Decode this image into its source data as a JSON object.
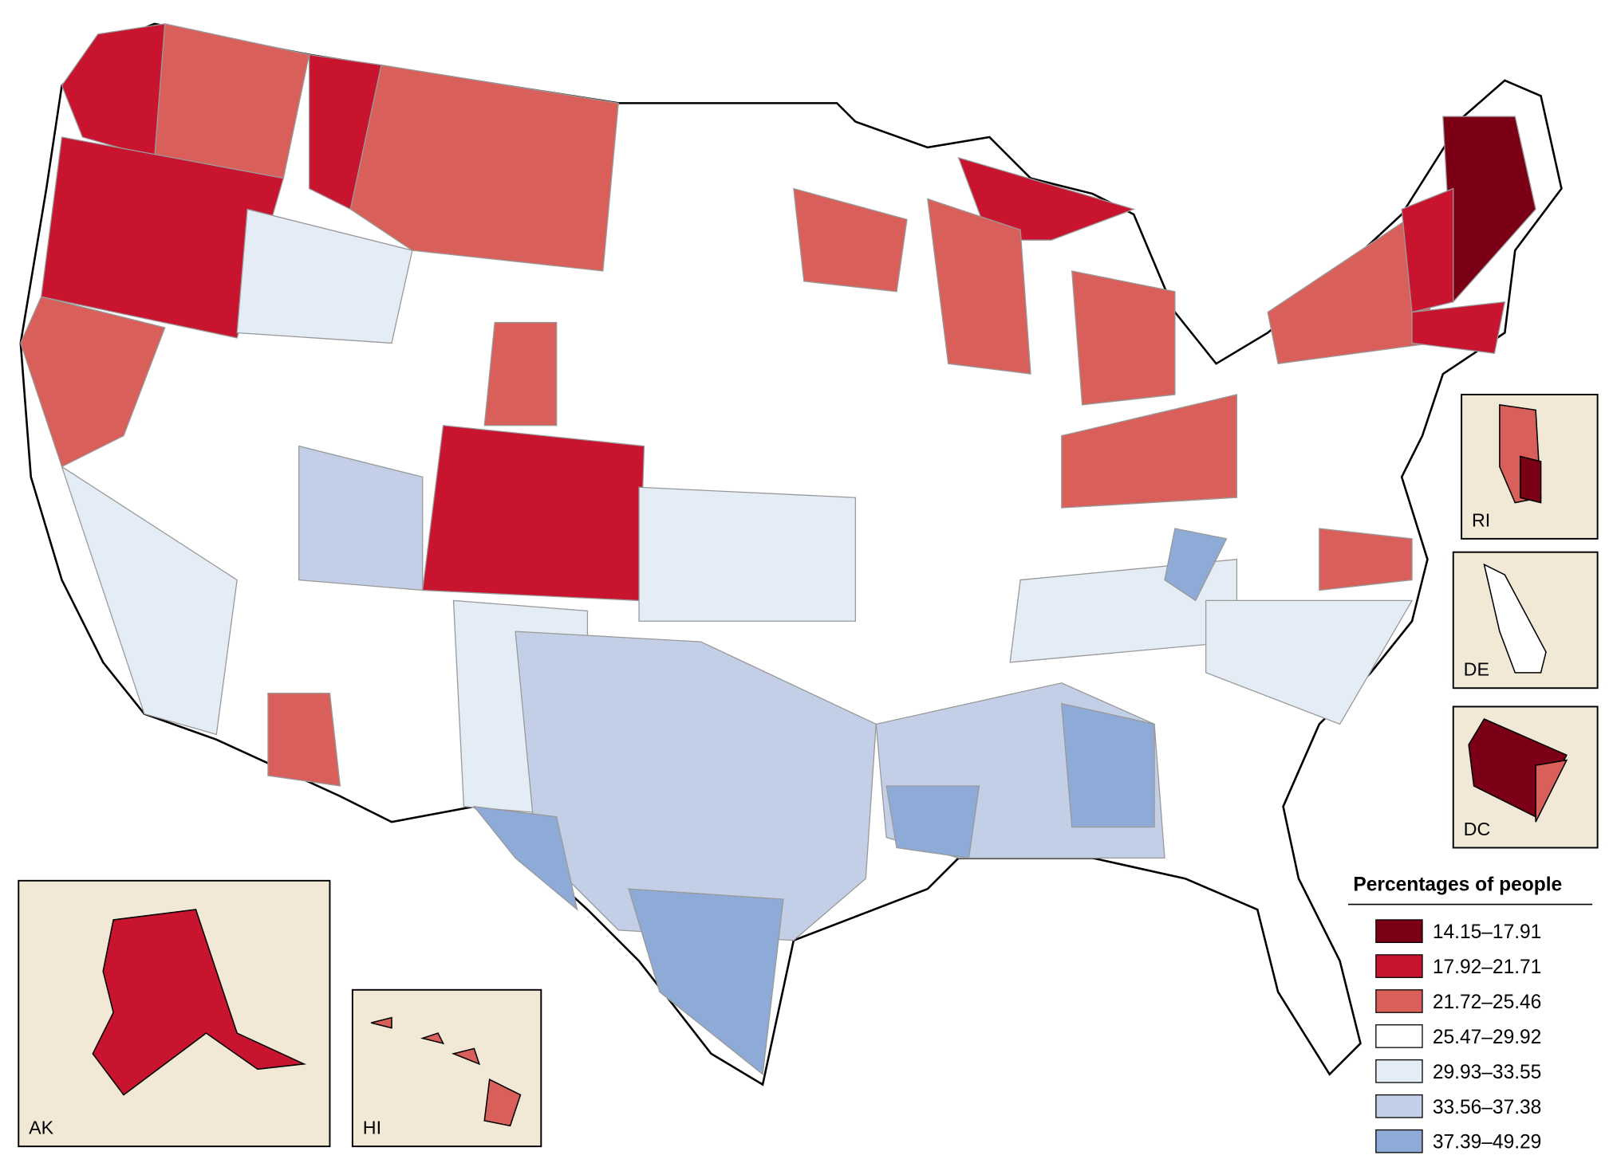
{
  "legend": {
    "title": "Percentages of people",
    "items": [
      {
        "label": "14.15–17.91",
        "color": "#7b0015"
      },
      {
        "label": "17.92–21.71",
        "color": "#c8142f"
      },
      {
        "label": "21.72–25.46",
        "color": "#d9605a"
      },
      {
        "label": "25.47–29.92",
        "color": "#ffffff"
      },
      {
        "label": "29.93–33.55",
        "color": "#e4ecf6"
      },
      {
        "label": "33.56–37.38",
        "color": "#c3cfe6"
      },
      {
        "label": "37.39–49.29",
        "color": "#8eaad6"
      }
    ]
  },
  "insets": [
    "AK",
    "HI",
    "RI",
    "DE",
    "DC"
  ]
}
